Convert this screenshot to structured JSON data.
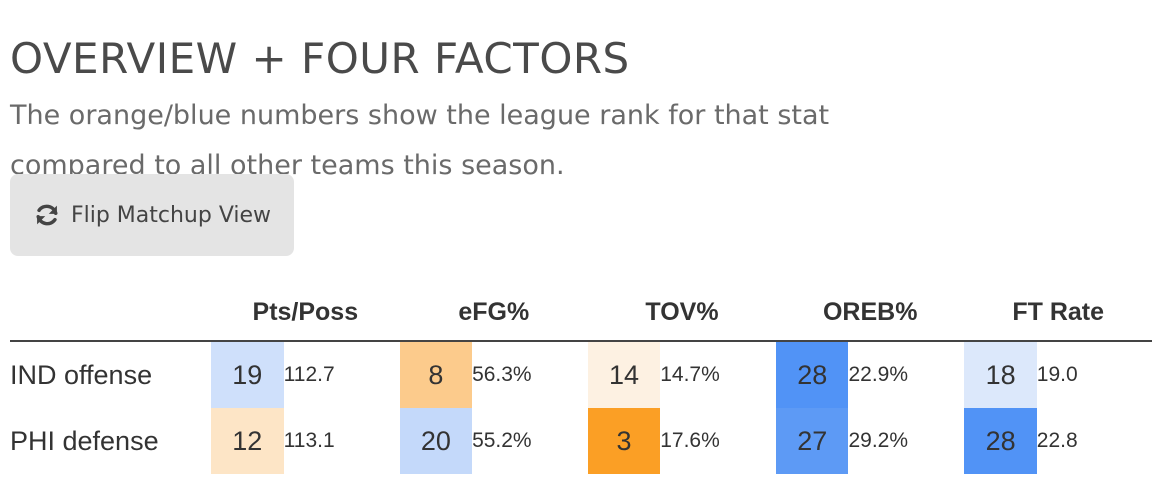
{
  "header": {
    "title": "OVERVIEW + FOUR FACTORS",
    "subtitle": "The orange/blue numbers show the league rank for that stat compared to all other teams this season."
  },
  "flip_button": {
    "label": "Flip Matchup View",
    "icon": "refresh-icon"
  },
  "table": {
    "columns": [
      "Pts/Poss",
      "eFG%",
      "TOV%",
      "OREB%",
      "FT Rate"
    ],
    "rows": [
      {
        "label": "IND offense",
        "cells": [
          {
            "rank": "19",
            "value": "112.7",
            "color": "#cfe0fb"
          },
          {
            "rank": "8",
            "value": "56.3%",
            "color": "#fccb8c"
          },
          {
            "rank": "14",
            "value": "14.7%",
            "color": "#fdf1e2"
          },
          {
            "rank": "28",
            "value": "22.9%",
            "color": "#5193f6"
          },
          {
            "rank": "18",
            "value": "19.0",
            "color": "#dce8fb"
          }
        ]
      },
      {
        "label": "PHI defense",
        "cells": [
          {
            "rank": "12",
            "value": "113.1",
            "color": "#fde5c6"
          },
          {
            "rank": "20",
            "value": "55.2%",
            "color": "#c4d9fa"
          },
          {
            "rank": "3",
            "value": "17.6%",
            "color": "#fb9f25"
          },
          {
            "rank": "27",
            "value": "29.2%",
            "color": "#5d9af5"
          },
          {
            "rank": "28",
            "value": "22.8",
            "color": "#5193f6"
          }
        ]
      }
    ]
  }
}
